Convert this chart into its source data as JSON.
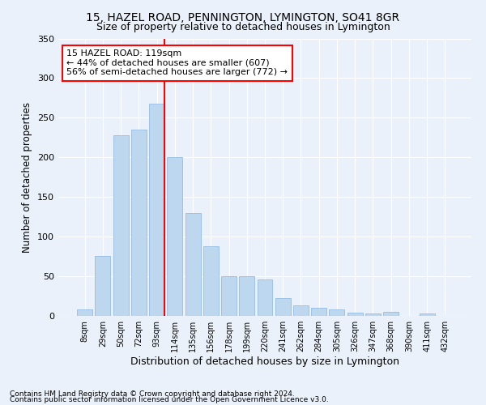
{
  "title1": "15, HAZEL ROAD, PENNINGTON, LYMINGTON, SO41 8GR",
  "title2": "Size of property relative to detached houses in Lymington",
  "xlabel": "Distribution of detached houses by size in Lymington",
  "ylabel": "Number of detached properties",
  "categories": [
    "8sqm",
    "29sqm",
    "50sqm",
    "72sqm",
    "93sqm",
    "114sqm",
    "135sqm",
    "156sqm",
    "178sqm",
    "199sqm",
    "220sqm",
    "241sqm",
    "262sqm",
    "284sqm",
    "305sqm",
    "326sqm",
    "347sqm",
    "368sqm",
    "390sqm",
    "411sqm",
    "432sqm"
  ],
  "values": [
    8,
    76,
    228,
    235,
    268,
    200,
    130,
    88,
    50,
    50,
    46,
    22,
    13,
    10,
    8,
    4,
    3,
    5,
    0,
    3,
    0
  ],
  "bar_color": "#BDD7EE",
  "bar_edge_color": "#9DC3E6",
  "vline_color": "red",
  "annotation_text": "15 HAZEL ROAD: 119sqm\n← 44% of detached houses are smaller (607)\n56% of semi-detached houses are larger (772) →",
  "annotation_box_color": "white",
  "annotation_box_edge_color": "red",
  "ylim": [
    0,
    350
  ],
  "yticks": [
    0,
    50,
    100,
    150,
    200,
    250,
    300,
    350
  ],
  "footnote1": "Contains HM Land Registry data © Crown copyright and database right 2024.",
  "footnote2": "Contains public sector information licensed under the Open Government Licence v3.0.",
  "bg_color": "#EBF1FA",
  "plot_bg_color": "#EBF1FA",
  "title1_fontsize": 10,
  "title2_fontsize": 9,
  "xlabel_fontsize": 9,
  "ylabel_fontsize": 8.5,
  "footnote_fontsize": 6.5
}
